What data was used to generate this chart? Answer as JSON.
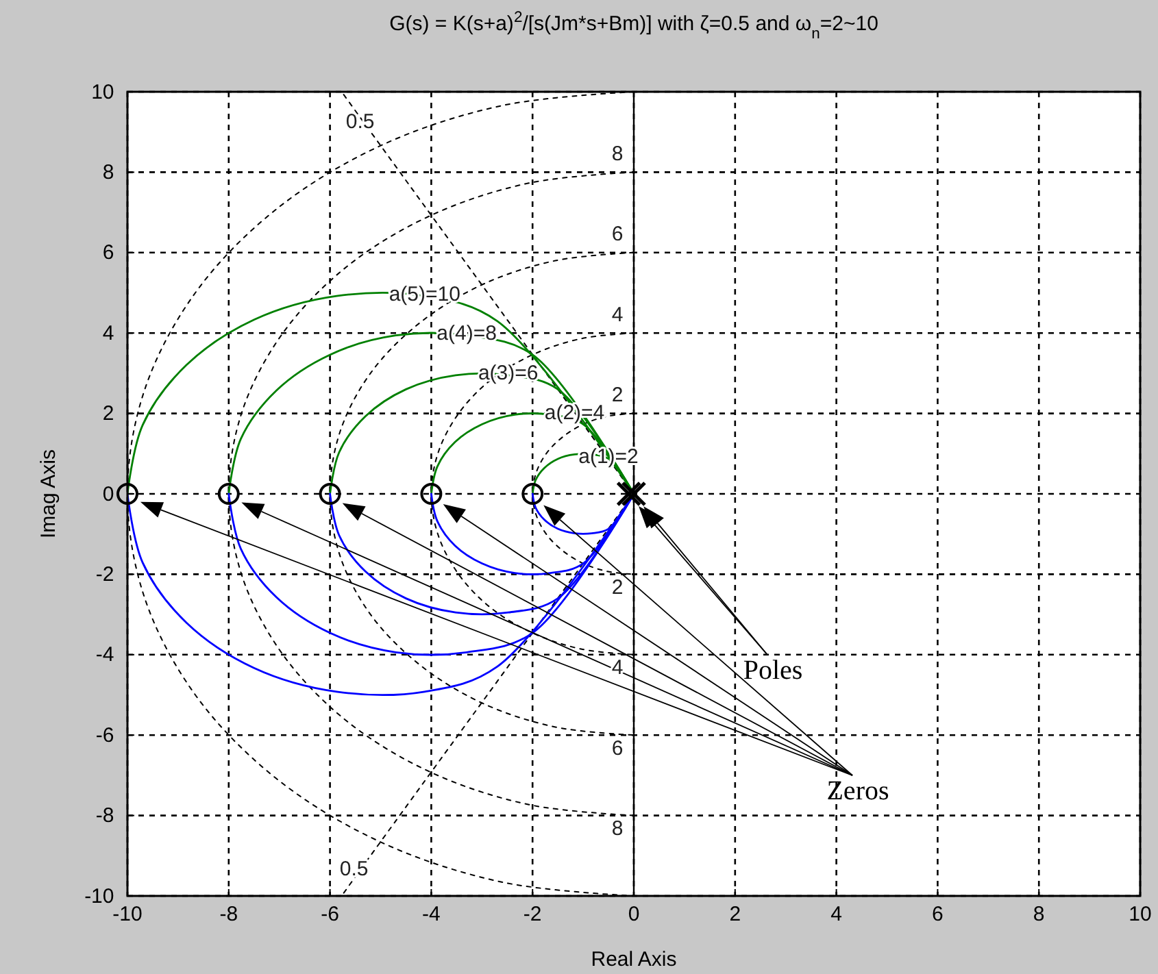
{
  "chart_data": {
    "type": "line",
    "title": "G(s) = K(s+a)$^{2}$/[s(Jm*s+Bm)] with ζ=0.5 and ω$_{n}$=2~10",
    "xlabel": "Real Axis",
    "ylabel": "Imag Axis",
    "xlim": [
      -10,
      10
    ],
    "ylim": [
      -10,
      10
    ],
    "xticks": [
      -10,
      -8,
      -6,
      -4,
      -2,
      0,
      2,
      4,
      6,
      8,
      10
    ],
    "yticks": [
      -10,
      -8,
      -6,
      -4,
      -2,
      0,
      2,
      4,
      6,
      8,
      10
    ],
    "grid": true,
    "series": [
      {
        "color": "#000000",
        "line_style": "dotted",
        "x": [
          0,
          -0.52,
          -1,
          -1.41,
          -1.73,
          -1.93,
          -2,
          -1.93,
          -1.73,
          -1.41,
          -1,
          -0.52,
          0
        ],
        "values": [
          2,
          1.93,
          1.73,
          1.41,
          1,
          0.52,
          0,
          -0.52,
          -1,
          -1.41,
          -1.73,
          -1.93,
          -2
        ]
      },
      {
        "color": "#000000",
        "line_style": "dotted",
        "x": [
          0,
          -1.04,
          -2,
          -2.83,
          -3.46,
          -3.86,
          -4,
          -3.86,
          -3.46,
          -2.83,
          -2,
          -1.04,
          0
        ],
        "values": [
          4,
          3.86,
          3.46,
          2.83,
          2,
          1.04,
          0,
          -1.04,
          -2,
          -2.83,
          -3.46,
          -3.86,
          -4
        ]
      },
      {
        "color": "#000000",
        "line_style": "dotted",
        "x": [
          0,
          -1.55,
          -3,
          -4.24,
          -5.2,
          -5.8,
          -6,
          -5.8,
          -5.2,
          -4.24,
          -3,
          -1.55,
          0
        ],
        "values": [
          6,
          5.8,
          5.2,
          4.24,
          3,
          1.55,
          0,
          -1.55,
          -3,
          -4.24,
          -5.2,
          -5.8,
          -6
        ]
      },
      {
        "color": "#000000",
        "line_style": "dotted",
        "x": [
          0,
          -2.07,
          -4,
          -5.66,
          -6.93,
          -7.73,
          -8,
          -7.73,
          -6.93,
          -5.66,
          -4,
          -2.07,
          0
        ],
        "values": [
          8,
          7.73,
          6.93,
          5.66,
          4,
          2.07,
          0,
          -2.07,
          -4,
          -5.66,
          -6.93,
          -7.73,
          -8
        ]
      },
      {
        "color": "#000000",
        "line_style": "dotted",
        "x": [
          0,
          -2.59,
          -5,
          -7.07,
          -8.66,
          -9.66,
          -10,
          -9.66,
          -8.66,
          -7.07,
          -5,
          -2.59,
          0
        ],
        "values": [
          10,
          9.66,
          8.66,
          7.07,
          5,
          2.59,
          0,
          -2.59,
          -5,
          -7.07,
          -8.66,
          -9.66,
          -10
        ]
      },
      {
        "color": "#000000",
        "line_style": "dotted",
        "x": [
          0,
          -5.08,
          -5.77
        ],
        "values": [
          0,
          8.8,
          10
        ]
      },
      {
        "color": "#000000",
        "line_style": "dotted",
        "x": [
          0,
          -5.2,
          -5.77
        ],
        "values": [
          0,
          -9,
          -10
        ]
      },
      {
        "color": "#008000",
        "x": [
          -10,
          -9.7,
          -8.83,
          -7.5,
          -5.87,
          -4.13,
          -2.7,
          0
        ],
        "values": [
          0,
          1.71,
          3.21,
          4.33,
          4.92,
          4.92,
          4.3,
          0
        ]
      },
      {
        "color": "#008000",
        "x": [
          -8,
          -7.76,
          -7.06,
          -6,
          -4.7,
          -3.3,
          -2,
          0
        ],
        "values": [
          0,
          1.37,
          2.57,
          3.46,
          3.94,
          3.94,
          3.46,
          0
        ]
      },
      {
        "color": "#008000",
        "x": [
          -6,
          -5.82,
          -5.3,
          -4.5,
          -3.52,
          -2.48,
          -1.5,
          0
        ],
        "values": [
          0,
          1.03,
          1.93,
          2.6,
          2.95,
          2.95,
          2.6,
          0
        ]
      },
      {
        "color": "#008000",
        "x": [
          -4,
          -3.88,
          -3.53,
          -3,
          -2.35,
          -1.65,
          -1,
          0
        ],
        "values": [
          0,
          0.68,
          1.29,
          1.73,
          1.97,
          1.97,
          1.73,
          0
        ]
      },
      {
        "color": "#008000",
        "x": [
          -2,
          -1.94,
          -1.77,
          -1.5,
          -1.17,
          -0.83,
          -0.5,
          0
        ],
        "values": [
          0,
          0.34,
          0.64,
          0.87,
          0.98,
          0.98,
          0.87,
          0
        ]
      },
      {
        "color": "#0000ff",
        "x": [
          -10,
          -9.7,
          -8.83,
          -7.5,
          -5.87,
          -4.13,
          -2.7,
          0
        ],
        "values": [
          0,
          -1.71,
          -3.21,
          -4.33,
          -4.92,
          -4.92,
          -4.3,
          0
        ]
      },
      {
        "color": "#0000ff",
        "x": [
          -8,
          -7.76,
          -7.06,
          -6,
          -4.7,
          -3.3,
          -2,
          0
        ],
        "values": [
          0,
          -1.37,
          -2.57,
          -3.46,
          -3.94,
          -3.94,
          -3.46,
          0
        ]
      },
      {
        "color": "#0000ff",
        "x": [
          -6,
          -5.82,
          -5.3,
          -4.5,
          -3.52,
          -2.48,
          -1.5,
          0
        ],
        "values": [
          0,
          -1.03,
          -1.93,
          -2.6,
          -2.95,
          -2.95,
          -2.6,
          0
        ]
      },
      {
        "color": "#0000ff",
        "x": [
          -4,
          -3.88,
          -3.53,
          -3,
          -2.35,
          -1.65,
          -1,
          0
        ],
        "values": [
          0,
          -0.68,
          -1.29,
          -1.73,
          -1.97,
          -1.97,
          -1.73,
          0
        ]
      },
      {
        "color": "#0000ff",
        "x": [
          -2,
          -1.94,
          -1.77,
          -1.5,
          -1.17,
          -0.83,
          -0.5,
          0
        ],
        "values": [
          0,
          -0.34,
          -0.64,
          -0.87,
          -0.98,
          -0.98,
          -0.87,
          0
        ]
      },
      {
        "type": "scatter",
        "marker": "cross",
        "color": "#000000",
        "x": [
          -0.1,
          0
        ],
        "values": [
          0,
          0
        ]
      },
      {
        "type": "scatter",
        "marker": "circle",
        "color": "#000000",
        "x": [
          -10,
          -8,
          -6,
          -4,
          -2
        ],
        "values": [
          0,
          0,
          0,
          0,
          0
        ]
      }
    ],
    "annotations": [
      {
        "text": "0.5",
        "x": -5.08,
        "y": 8.8
      },
      {
        "text": "0.5",
        "x": -5.2,
        "y": -9
      },
      {
        "text": "8",
        "x": 0,
        "y": 8
      },
      {
        "text": "6",
        "x": 0,
        "y": 6
      },
      {
        "text": "4",
        "x": 0,
        "y": 4
      },
      {
        "text": "2",
        "x": 0,
        "y": 2
      },
      {
        "text": "2",
        "x": 0,
        "y": -2
      },
      {
        "text": "4",
        "x": 0,
        "y": -4
      },
      {
        "text": "6",
        "x": 0,
        "y": -6
      },
      {
        "text": "8",
        "x": 0,
        "y": -8
      },
      {
        "text": "a(5)=10",
        "x": -4.13,
        "y": 4.92
      },
      {
        "text": "a(4)=8",
        "x": -3.3,
        "y": 3.94
      },
      {
        "text": "a(3)=6",
        "x": -2.48,
        "y": 2.95
      },
      {
        "text": "a(2)=4",
        "x": -1.17,
        "y": 1.97
      },
      {
        "text": "a(1)=2",
        "x": -0.5,
        "y": 0.87
      },
      "Poles",
      "Zeros"
    ]
  }
}
